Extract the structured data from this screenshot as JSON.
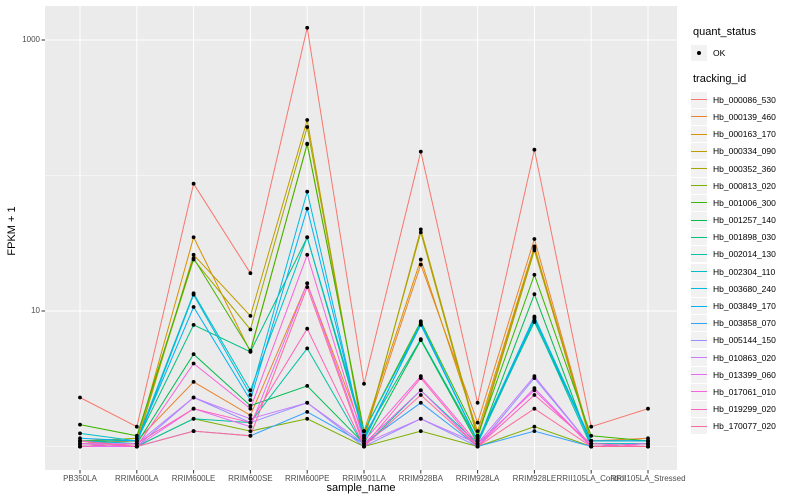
{
  "chart_data": {
    "type": "line",
    "title": "",
    "xlabel": "sample_name",
    "ylabel": "FPKM + 1",
    "y_scale": "log10",
    "grid": true,
    "legend_position": "right",
    "point_color": "#000000",
    "y_axis": {
      "ticks": [
        {
          "label": "1000",
          "value": 1000
        },
        {
          "label": "10",
          "value": 10
        }
      ],
      "minor_gridlines": [
        1,
        100
      ],
      "range": [
        0.67,
        1800
      ]
    },
    "categories": [
      "PB350LA",
      "RRIM600LA",
      "RRIM600LE",
      "RRIM600SE",
      "RRIM600PE",
      "RRIM901LA",
      "RRIM928BA",
      "RRIM928LA",
      "RRIM928LE",
      "RRII105LA_Control",
      "RRII105LA_Stressed"
    ],
    "series": [
      {
        "name": "Hb_000086_530",
        "color": "#F8766D",
        "values": [
          2.3,
          1.4,
          87,
          19,
          1230,
          2.9,
          150,
          2.1,
          155,
          1.4,
          1.9
        ]
      },
      {
        "name": "Hb_000139_460",
        "color": "#EA8331",
        "values": [
          1.05,
          1.1,
          3.0,
          1.7,
          16,
          1.2,
          22,
          1.5,
          34,
          1.1,
          1.15
        ]
      },
      {
        "name": "Hb_000163_170",
        "color": "#D89000",
        "values": [
          1.1,
          1.1,
          35,
          5.0,
          172,
          1.3,
          24,
          1.3,
          30,
          1.1,
          1.1
        ]
      },
      {
        "name": "Hb_000334_090",
        "color": "#C09B00",
        "values": [
          1.0,
          1.05,
          26,
          9.2,
          257,
          1.1,
          40,
          1.2,
          29,
          1.05,
          1.05
        ]
      },
      {
        "name": "Hb_000352_360",
        "color": "#A3A500",
        "values": [
          1.1,
          1.15,
          24,
          7.3,
          228,
          1.15,
          38,
          1.15,
          28,
          1.1,
          1.1
        ]
      },
      {
        "name": "Hb_000813_020",
        "color": "#7CAE00",
        "values": [
          1.0,
          1.0,
          1.6,
          1.3,
          1.6,
          1.0,
          1.3,
          1.0,
          1.4,
          1.0,
          1.0
        ]
      },
      {
        "name": "Hb_001006_300",
        "color": "#39B600",
        "values": [
          1.45,
          1.2,
          24.5,
          5.1,
          170,
          1.3,
          8.4,
          1.2,
          18.5,
          1.2,
          1.1
        ]
      },
      {
        "name": "Hb_001257_140",
        "color": "#00BB4E",
        "values": [
          1.0,
          1.05,
          4.8,
          2.0,
          2.8,
          1.05,
          6.1,
          1.05,
          13.3,
          1.0,
          1.05
        ]
      },
      {
        "name": "Hb_001898_030",
        "color": "#00BF7D",
        "values": [
          1.1,
          1.1,
          7.9,
          5.0,
          35,
          1.2,
          6.2,
          1.1,
          8.3,
          1.1,
          1.1
        ]
      },
      {
        "name": "Hb_002014_130",
        "color": "#00C1A3",
        "values": [
          1.05,
          1.0,
          1.6,
          1.5,
          5.3,
          1.0,
          2.6,
          1.05,
          8.5,
          1.0,
          1.05
        ]
      },
      {
        "name": "Hb_002304_110",
        "color": "#00BFC4",
        "values": [
          1.25,
          1.1,
          13.5,
          2.6,
          35,
          1.3,
          8.0,
          1.1,
          9.1,
          1.1,
          1.1
        ]
      },
      {
        "name": "Hb_003680_240",
        "color": "#00BAE0",
        "values": [
          1.1,
          1.05,
          13.2,
          2.4,
          76,
          1.1,
          8.2,
          1.1,
          9.0,
          1.05,
          1.05
        ]
      },
      {
        "name": "Hb_003849_170",
        "color": "#00B0F6",
        "values": [
          1.15,
          1.1,
          10.7,
          2.2,
          57,
          1.15,
          7.9,
          1.1,
          8.8,
          1.1,
          1.1
        ]
      },
      {
        "name": "Hb_003858_070",
        "color": "#35A2FF",
        "values": [
          1.1,
          1.0,
          1.3,
          1.2,
          1.8,
          1.05,
          2.1,
          1.0,
          1.3,
          1.0,
          1.0
        ]
      },
      {
        "name": "Hb_005144_150",
        "color": "#9590FF",
        "values": [
          1.0,
          1.0,
          2.3,
          1.5,
          2.1,
          1.0,
          1.6,
          1.0,
          3.2,
          1.0,
          1.0
        ]
      },
      {
        "name": "Hb_010863_020",
        "color": "#C77CFF",
        "values": [
          1.05,
          1.05,
          2.3,
          1.6,
          2.1,
          1.05,
          1.6,
          1.05,
          3.3,
          1.0,
          1.0
        ]
      },
      {
        "name": "Hb_013399_060",
        "color": "#E76BF3",
        "values": [
          1.0,
          1.0,
          1.9,
          1.4,
          16,
          1.05,
          2.6,
          1.0,
          2.7,
          1.0,
          1.0
        ]
      },
      {
        "name": "Hb_017061_010",
        "color": "#FA62DB",
        "values": [
          1.05,
          1.0,
          4.1,
          1.9,
          26,
          1.1,
          3.3,
          1.05,
          2.6,
          1.0,
          1.05
        ]
      },
      {
        "name": "Hb_019299_020",
        "color": "#FF62BC",
        "values": [
          1.0,
          1.05,
          1.9,
          1.5,
          7.4,
          1.0,
          3.2,
          1.0,
          2.4,
          1.05,
          1.0
        ]
      },
      {
        "name": "Hb_170077_020",
        "color": "#FF6A98",
        "values": [
          1.1,
          1.0,
          1.3,
          1.2,
          15,
          1.0,
          2.4,
          1.0,
          1.9,
          1.0,
          1.0
        ]
      }
    ]
  },
  "legend": {
    "quant_status_title": "quant_status",
    "quant_status_items": [
      {
        "label": "OK"
      }
    ],
    "tracking_id_title": "tracking_id"
  },
  "theme": {
    "panel_bg": "#EBEBEB",
    "grid_color": "#FFFFFF",
    "key_bg": "#F2F2F2",
    "tick_color": "#333333",
    "tick_label_color": "#4D4D4D",
    "axis_title_color": "#000000"
  }
}
